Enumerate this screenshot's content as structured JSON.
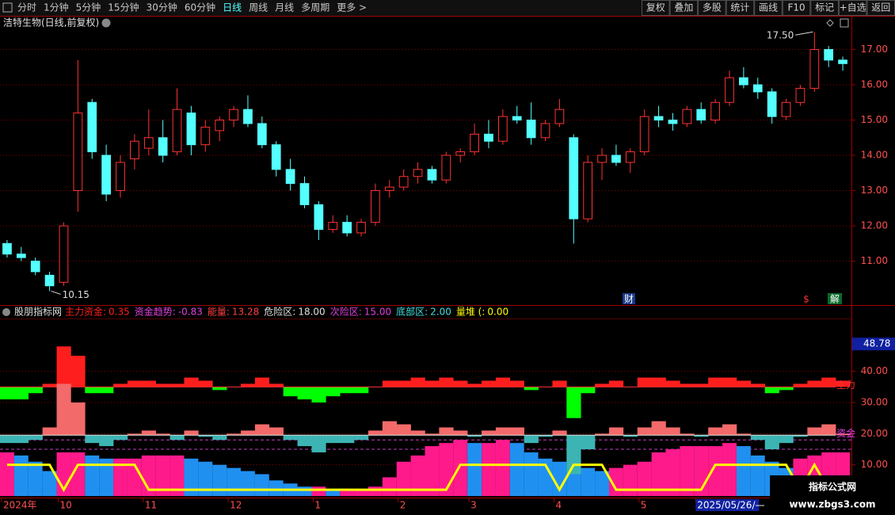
{
  "toolbar": {
    "periods": [
      "分时",
      "1分钟",
      "5分钟",
      "15分钟",
      "30分钟",
      "60分钟",
      "日线",
      "周线",
      "月线",
      "多周期",
      "更多 >"
    ],
    "active": "日线",
    "buttons": [
      "复权",
      "叠加",
      "多股",
      "统计",
      "画线",
      "F10",
      "标记",
      "+自选",
      "返回"
    ]
  },
  "chart_data": [
    {
      "type": "candlestick",
      "title": "洁特生物(日线,前复权)",
      "ylim": [
        9.8,
        17.55
      ],
      "yticks": [
        {
          "value": 11,
          "label": "11.00"
        },
        {
          "value": 12,
          "label": "12.00"
        },
        {
          "value": 13,
          "label": "13.00"
        },
        {
          "value": 14,
          "label": "14.00"
        },
        {
          "value": 15,
          "label": "15.00"
        },
        {
          "value": 16,
          "label": "16.00"
        },
        {
          "value": 17,
          "label": "17.00"
        }
      ],
      "grid": true,
      "up_color": "#ff3232",
      "down_color": "#54ffff",
      "ohlc": [
        [
          11.5,
          11.6,
          11.1,
          11.2
        ],
        [
          11.2,
          11.4,
          11.0,
          11.1
        ],
        [
          11.0,
          11.1,
          10.6,
          10.7
        ],
        [
          10.6,
          10.7,
          10.15,
          10.3
        ],
        [
          10.4,
          12.1,
          10.3,
          12.0
        ],
        [
          13.0,
          16.7,
          12.4,
          15.2
        ],
        [
          15.5,
          15.6,
          13.9,
          14.1
        ],
        [
          14.0,
          14.3,
          12.7,
          12.9
        ],
        [
          13.0,
          14.0,
          12.8,
          13.8
        ],
        [
          13.9,
          14.6,
          13.6,
          14.4
        ],
        [
          14.2,
          15.3,
          14.0,
          14.5
        ],
        [
          14.5,
          15.0,
          13.8,
          14.0
        ],
        [
          14.1,
          15.9,
          14.0,
          15.3
        ],
        [
          15.2,
          15.4,
          14.0,
          14.3
        ],
        [
          14.3,
          15.0,
          14.1,
          14.8
        ],
        [
          14.7,
          15.1,
          14.4,
          15.0
        ],
        [
          15.0,
          15.4,
          14.8,
          15.3
        ],
        [
          15.3,
          15.7,
          14.8,
          14.9
        ],
        [
          14.9,
          15.1,
          14.2,
          14.3
        ],
        [
          14.3,
          14.4,
          13.4,
          13.6
        ],
        [
          13.6,
          13.9,
          13.0,
          13.2
        ],
        [
          13.2,
          13.4,
          12.5,
          12.6
        ],
        [
          12.6,
          12.7,
          11.6,
          11.9
        ],
        [
          11.9,
          12.3,
          11.8,
          12.1
        ],
        [
          12.1,
          12.3,
          11.7,
          11.8
        ],
        [
          11.8,
          12.2,
          11.7,
          12.1
        ],
        [
          12.1,
          13.2,
          12.0,
          13.0
        ],
        [
          13.0,
          13.3,
          12.8,
          13.1
        ],
        [
          13.1,
          13.6,
          13.0,
          13.4
        ],
        [
          13.4,
          13.8,
          13.2,
          13.6
        ],
        [
          13.6,
          13.7,
          13.2,
          13.3
        ],
        [
          13.3,
          14.1,
          13.2,
          14.0
        ],
        [
          14.0,
          14.2,
          13.8,
          14.1
        ],
        [
          14.1,
          14.9,
          14.0,
          14.6
        ],
        [
          14.6,
          15.0,
          14.2,
          14.4
        ],
        [
          14.4,
          15.3,
          14.3,
          15.1
        ],
        [
          15.1,
          15.4,
          14.9,
          15.0
        ],
        [
          15.0,
          15.5,
          14.3,
          14.5
        ],
        [
          14.5,
          15.0,
          14.4,
          14.9
        ],
        [
          14.9,
          15.6,
          14.8,
          15.3
        ],
        [
          14.5,
          14.6,
          11.5,
          12.2
        ],
        [
          12.2,
          14.0,
          12.1,
          13.8
        ],
        [
          13.8,
          14.2,
          13.3,
          14.0
        ],
        [
          14.0,
          14.3,
          13.7,
          13.8
        ],
        [
          13.8,
          14.2,
          13.5,
          14.1
        ],
        [
          14.1,
          15.3,
          14.0,
          15.1
        ],
        [
          15.1,
          15.4,
          14.8,
          15.0
        ],
        [
          15.0,
          15.2,
          14.7,
          14.9
        ],
        [
          14.9,
          15.4,
          14.8,
          15.3
        ],
        [
          15.3,
          15.5,
          14.9,
          15.0
        ],
        [
          15.0,
          15.6,
          14.9,
          15.5
        ],
        [
          15.5,
          16.4,
          15.4,
          16.2
        ],
        [
          16.2,
          16.5,
          15.9,
          16.0
        ],
        [
          16.0,
          16.2,
          15.6,
          15.8
        ],
        [
          15.8,
          15.9,
          14.9,
          15.1
        ],
        [
          15.1,
          15.6,
          15.0,
          15.5
        ],
        [
          15.5,
          16.0,
          15.4,
          15.9
        ],
        [
          15.9,
          17.5,
          15.8,
          17.0
        ],
        [
          17.0,
          17.1,
          16.5,
          16.7
        ],
        [
          16.7,
          16.8,
          16.4,
          16.6
        ]
      ],
      "high_label": {
        "value": 17.5,
        "label": "17.50"
      },
      "low_label": {
        "value": 10.15,
        "label": "10.15"
      },
      "events": [
        "财",
        "$",
        "解"
      ]
    },
    {
      "type": "indicator",
      "title": "股朋指标网",
      "ylim": [
        0,
        56.7
      ],
      "yticks": [
        {
          "value": 10,
          "label": "10.00"
        },
        {
          "value": 20,
          "label": "20.00"
        },
        {
          "value": 30,
          "label": "30.00"
        },
        {
          "value": 40,
          "label": "40.00"
        }
      ],
      "grid": true,
      "current": 48.78,
      "series": [
        {
          "name": "主力资金:",
          "kind": "area",
          "color": "#ff1e1e",
          "neg_color": "#00ff00",
          "baseline": 35,
          "current": 0.35,
          "axis_label": "主力",
          "values": [
            31,
            31,
            33,
            36,
            48,
            45,
            33,
            33,
            36,
            37,
            37,
            36,
            36,
            38,
            37,
            34,
            35,
            36,
            38,
            36,
            32,
            31,
            30,
            32,
            33,
            33,
            35,
            37,
            37,
            38,
            37,
            38,
            37,
            36,
            37,
            38,
            37,
            34,
            35,
            37,
            25,
            33,
            36,
            37,
            35,
            38,
            38,
            37,
            36,
            36,
            38,
            38,
            37,
            36,
            33,
            34,
            36,
            37,
            38,
            37
          ]
        },
        {
          "name": "资金趋势:",
          "kind": "area",
          "color": "#f26a6a",
          "neg_color": "#3cb4b4",
          "legend_color": "#e040e0",
          "baseline": 19.5,
          "current": -0.83,
          "axis_label": "资金",
          "values": [
            17,
            17,
            18,
            22,
            36,
            30,
            17,
            16,
            18,
            20,
            21,
            20,
            18,
            21,
            19,
            18,
            20,
            21,
            23,
            22,
            18,
            16,
            14,
            17,
            17,
            18,
            21,
            24,
            23,
            21,
            20,
            22,
            21,
            19,
            21,
            22,
            22,
            17,
            19,
            21,
            7,
            15,
            20,
            22,
            19,
            22,
            24,
            22,
            20,
            19,
            22,
            23,
            20,
            18,
            15,
            17,
            19,
            22,
            23,
            20
          ]
        },
        {
          "name": "能量:",
          "kind": "bars",
          "color": "#ff1a8c",
          "neg_color": "#2090f0",
          "legend_color": "#ff4040",
          "current": 13.28,
          "values": [
            14,
            13,
            11,
            8,
            14,
            14,
            13,
            12,
            12,
            12,
            13,
            13,
            13,
            12,
            11,
            10,
            9,
            8,
            7,
            5,
            4,
            3,
            3,
            2,
            2,
            2,
            3,
            6,
            11,
            13,
            16,
            17,
            18,
            17,
            17,
            18,
            17,
            14,
            12,
            11,
            10,
            9,
            8,
            9,
            10,
            11,
            14,
            15,
            16,
            16,
            16,
            17,
            16,
            13,
            11,
            9,
            12,
            13,
            14,
            14
          ]
        },
        {
          "name": "量堆 (:",
          "kind": "line",
          "color": "#ffff00",
          "current": 0,
          "current_label": "0.00",
          "values": [
            10,
            10,
            10,
            10,
            2,
            10,
            10,
            10,
            10,
            10,
            2,
            2,
            2,
            2,
            2,
            2,
            2,
            2,
            2,
            2,
            2,
            2,
            2,
            2,
            2,
            2,
            2,
            2,
            2,
            2,
            2,
            2,
            10,
            10,
            10,
            10,
            10,
            10,
            10,
            2,
            10,
            10,
            10,
            2,
            2,
            2,
            2,
            2,
            2,
            2,
            10,
            10,
            10,
            10,
            10,
            10,
            2,
            10,
            2,
            2
          ]
        }
      ],
      "levels": [
        {
          "name": "危险区:",
          "value": 18,
          "label": "18.00",
          "color": "#e0e0e0",
          "line_color": "#c040c0"
        },
        {
          "name": "次险区:",
          "value": 15,
          "label": "15.00",
          "color": "#e040e0",
          "line_color": "#c040c0"
        },
        {
          "name": "底部区:",
          "value": 2,
          "label": "2.00",
          "color": "#40e0e0",
          "line_color": "#40c0c0"
        }
      ],
      "categories": [
        "2024年",
        null,
        null,
        null,
        "10",
        null,
        null,
        null,
        null,
        null,
        "11",
        null,
        null,
        null,
        null,
        null,
        "12",
        null,
        null,
        null,
        null,
        null,
        "1",
        null,
        null,
        null,
        null,
        null,
        "2",
        null,
        null,
        null,
        null,
        "3",
        null,
        null,
        null,
        null,
        null,
        "4",
        null,
        null,
        null,
        null,
        null,
        "5",
        null,
        null,
        null,
        "2025/05/26/—",
        null,
        null,
        null,
        null,
        null,
        null,
        null,
        null,
        null,
        null
      ],
      "cursor_index": 49
    }
  ],
  "watermark": {
    "title": "指标公式网",
    "url": "www.zbgs3.com"
  }
}
